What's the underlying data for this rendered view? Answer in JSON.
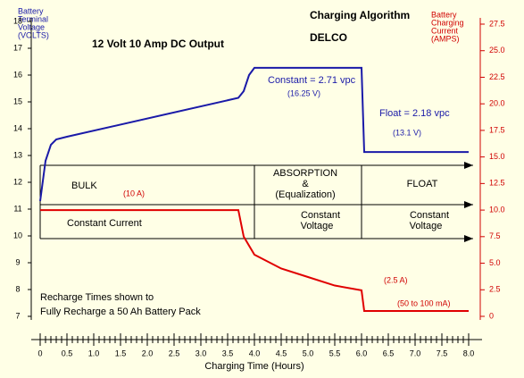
{
  "chart_data": {
    "type": "line",
    "title": "Charging Algorithm",
    "subtitle": "DELCO",
    "x_label": "Charging Time (Hours)",
    "y_label": [
      "Battery",
      "Terminal",
      "Voltage",
      "(VOLTS)"
    ],
    "y2_label": [
      "Battery",
      "Charging",
      "Current",
      "(AMPS)"
    ],
    "xlim": [
      0,
      8
    ],
    "xticks": [
      0,
      0.5,
      {
        "value": 1,
        "label": "1.0"
      },
      1.5,
      {
        "value": 2,
        "label": "2.0"
      },
      2.5,
      {
        "value": 3,
        "label": "3.0"
      },
      3.5,
      {
        "value": 4,
        "label": "4.0"
      },
      4.5,
      {
        "value": 5,
        "label": "5.0"
      },
      5.5,
      {
        "value": 6,
        "label": "6.0"
      },
      6.5,
      {
        "value": 7,
        "label": "7.0"
      },
      7.5,
      {
        "value": 8,
        "label": "8.0"
      }
    ],
    "ylim": [
      7,
      18
    ],
    "yticks": [
      7,
      8,
      9,
      10,
      11,
      12,
      13,
      14,
      15,
      16,
      17,
      18
    ],
    "y2lim": [
      0,
      27.5
    ],
    "y2ticks": [
      0,
      2.5,
      {
        "value": 5,
        "label": "5.0"
      },
      7.5,
      {
        "value": 10,
        "label": "10.0"
      },
      12.5,
      {
        "value": 15,
        "label": "15.0"
      },
      17.5,
      {
        "value": 20,
        "label": "20.0"
      },
      22.5,
      {
        "value": 25,
        "label": "25.0"
      },
      27.5
    ],
    "series": [
      {
        "name": "Voltage",
        "color": "#1a1aa8",
        "x": [
          0,
          0.1,
          0.2,
          0.3,
          0.5,
          3.7,
          3.8,
          3.9,
          4.0,
          6.0,
          6.05,
          8.0
        ],
        "values": [
          11.3,
          12.8,
          13.4,
          13.6,
          13.7,
          15.15,
          15.4,
          16.0,
          16.27,
          16.27,
          13.13,
          13.13
        ]
      },
      {
        "name": "Current",
        "color": "#e00000",
        "axis": "y2",
        "x": [
          0,
          3.7,
          3.8,
          4.0,
          4.5,
          5.0,
          5.5,
          6.0,
          6.05,
          8.0
        ],
        "values": [
          10.0,
          10.0,
          7.5,
          5.8,
          4.5,
          3.7,
          2.9,
          2.45,
          0.5,
          0.5
        ]
      }
    ],
    "annotations": [
      "12 Volt 10 Amp DC Output",
      "Constant = 2.71 vpc",
      "(16.25 V)",
      "Float = 2.18 vpc",
      "(13.1 V)",
      "BULK",
      "(10 A)",
      "ABSORPTION",
      "&",
      "(Equalization)",
      "FLOAT",
      "Constant Current",
      "Constant",
      "Voltage",
      "Constant",
      "Voltage",
      "(2.5 A)",
      "(50 to 100 mA)",
      "Recharge Times shown to",
      "Fully Recharge a 50 Ah Battery Pack"
    ]
  }
}
